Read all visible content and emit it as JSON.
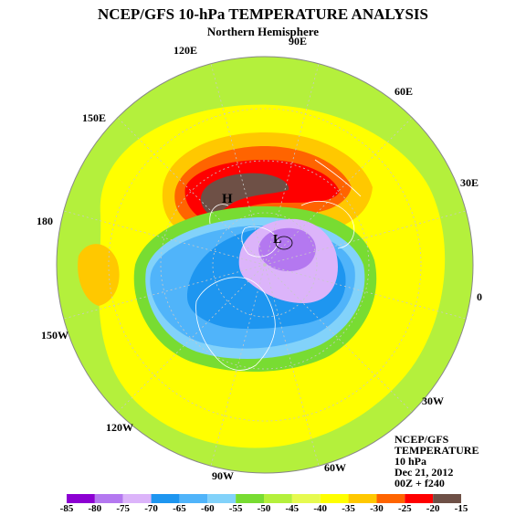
{
  "title": "NCEP/GFS 10-hPa TEMPERATURE ANALYSIS",
  "subtitle": "Northern Hemisphere",
  "longitude_labels": {
    "e90": "90E",
    "e120": "120E",
    "e60": "60E",
    "e150": "150E",
    "e30": "30E",
    "d180": "180",
    "zero": "0",
    "w150": "150W",
    "w30": "30W",
    "w120": "120W",
    "w90": "90W",
    "w60": "60W"
  },
  "markers": {
    "high": "H",
    "low": "L"
  },
  "info": {
    "model": "NCEP/GFS",
    "field": "TEMPERATURE",
    "level": "10 hPa",
    "date": "Dec 21, 2012",
    "run": "00Z + f240"
  },
  "colorbar": {
    "ticks": [
      "-85",
      "-80",
      "-75",
      "-70",
      "-65",
      "-60",
      "-55",
      "-50",
      "-45",
      "-40",
      "-35",
      "-30",
      "-25",
      "-20",
      "-15"
    ],
    "colors": [
      "#8c00d2",
      "#b478f0",
      "#dcb4fa",
      "#1e96f0",
      "#50b4fa",
      "#82d2fa",
      "#78dc32",
      "#b4f03c",
      "#e6fa50",
      "#ffff00",
      "#ffc800",
      "#ff6400",
      "#ff0000",
      "#6e5046"
    ]
  },
  "field_colors": {
    "outer": "#b4f03c",
    "yellow": "#ffff00",
    "orange": "#ffc800",
    "dorange": "#ff6400",
    "red": "#ff0000",
    "brown": "#6e5046",
    "green": "#78dc32",
    "lightblue": "#82d2fa",
    "cyan": "#50b4fa",
    "blue": "#1e96f0",
    "lavender": "#dcb4fa",
    "purple": "#b478f0"
  }
}
